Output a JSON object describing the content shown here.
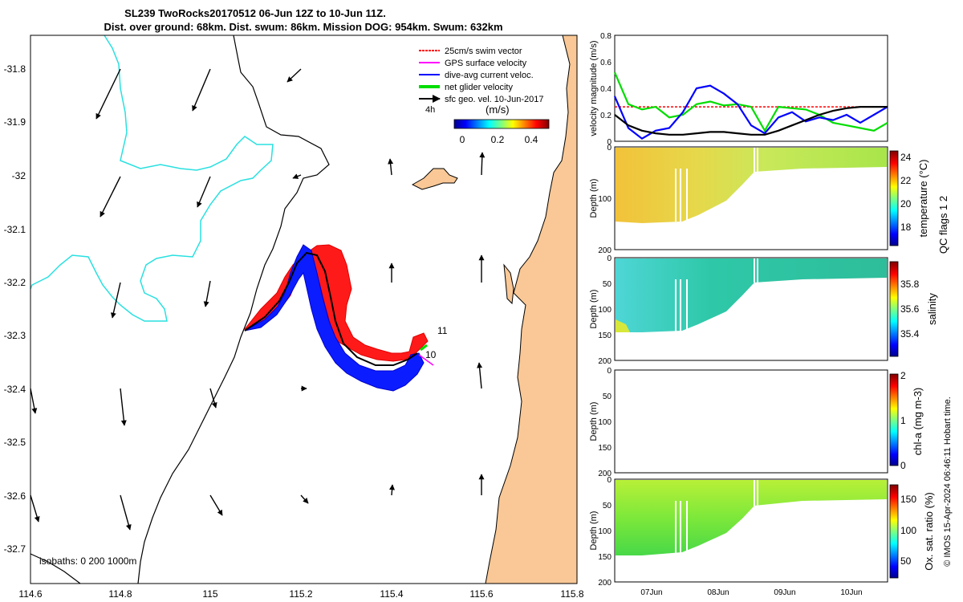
{
  "title": {
    "line1": "SL239 TwoRocks20170512 06-Jun 12Z to 10-Jun 11Z.",
    "line2": "Dist. over ground: 68km. Dist. swum: 86km. Mission DOG: 954km. Swum: 632km"
  },
  "map": {
    "xlim": [
      114.6,
      115.8
    ],
    "ylim": [
      -32.76,
      -31.74
    ],
    "xticks": [
      "114.6",
      "114.8",
      "115",
      "115.2",
      "115.4",
      "115.6",
      "115.8"
    ],
    "yticks": [
      "-31.8",
      "-31.9",
      "-32",
      "-32.1",
      "-32.2",
      "-32.3",
      "-32.4",
      "-32.5",
      "-32.6",
      "-32.7"
    ],
    "isobaths_label": "isobaths: 0   200  1000m",
    "legend": [
      {
        "label": "25cm/s swim vector",
        "color": "#ff0000"
      },
      {
        "label": "GPS surface velocity",
        "color": "#ff00ff"
      },
      {
        "label": "dive-avg current veloc.",
        "color": "#0000ff"
      },
      {
        "label": "net glider velocity",
        "color": "#00dd00"
      },
      {
        "label": "sfc geo. vel. 10-Jun-2017",
        "color": "#000000"
      }
    ],
    "speed_scale_label": "4h",
    "speed_colorbar_unit": "(m/s)",
    "speed_colorbar_ticks": [
      "0",
      "0.2",
      "0.4"
    ],
    "track_labels": [
      "11",
      "10"
    ]
  },
  "chart_data": [
    {
      "type": "line",
      "title": "",
      "ylabel": "velocity magnitude (m/s)",
      "ylim": [
        0,
        0.8
      ],
      "yticks": [
        "0",
        "0.2",
        "0.4",
        "0.6",
        "0.8"
      ],
      "x": [
        0,
        0.05,
        0.1,
        0.15,
        0.2,
        0.25,
        0.3,
        0.35,
        0.4,
        0.45,
        0.5,
        0.55,
        0.6,
        0.65,
        0.7,
        0.75,
        0.8,
        0.85,
        0.9,
        0.95,
        1.0
      ],
      "series": [
        {
          "name": "swim speed",
          "color": "#ff0000",
          "values": [
            0.26,
            0.26,
            0.26,
            0.26,
            0.26,
            0.26,
            0.26,
            0.26,
            0.26,
            0.26,
            0.26,
            0.26,
            0.26,
            0.26,
            0.26,
            0.26,
            0.26,
            0.26,
            0.26,
            0.26,
            0.26
          ]
        },
        {
          "name": "net glider velocity",
          "color": "#00dd00",
          "values": [
            0.52,
            0.28,
            0.24,
            0.26,
            0.18,
            0.2,
            0.28,
            0.3,
            0.27,
            0.28,
            0.26,
            0.08,
            0.26,
            0.25,
            0.24,
            0.2,
            0.14,
            0.12,
            0.1,
            0.08,
            0.14
          ]
        },
        {
          "name": "dive-avg current",
          "color": "#0000ff",
          "values": [
            0.34,
            0.1,
            0.02,
            0.08,
            0.1,
            0.22,
            0.4,
            0.42,
            0.36,
            0.28,
            0.12,
            0.06,
            0.18,
            0.22,
            0.15,
            0.18,
            0.16,
            0.2,
            0.14,
            0.2,
            0.26
          ]
        },
        {
          "name": "surface geostrophic",
          "color": "#000000",
          "values": [
            0.2,
            0.12,
            0.08,
            0.06,
            0.05,
            0.05,
            0.06,
            0.07,
            0.07,
            0.06,
            0.05,
            0.05,
            0.08,
            0.12,
            0.16,
            0.2,
            0.23,
            0.25,
            0.26,
            0.26,
            0.26
          ]
        }
      ]
    },
    {
      "type": "heatmap",
      "variable": "temperature",
      "cbar_label": "temperature (°C)",
      "ylabel": "Depth (m)",
      "ylim": [
        0,
        200
      ],
      "yticks": [
        "0",
        "100",
        "200"
      ],
      "cbar_range": [
        16.5,
        24.5
      ],
      "cbar_ticks": [
        "18",
        "20",
        "22",
        "24"
      ]
    },
    {
      "type": "heatmap",
      "variable": "salinity",
      "cbar_label": "salinity",
      "ylabel": "Depth (m)",
      "ylim": [
        0,
        200
      ],
      "yticks": [
        "0",
        "50",
        "100",
        "150",
        "200"
      ],
      "cbar_range": [
        35.25,
        35.95
      ],
      "cbar_ticks": [
        "35.4",
        "35.6",
        "35.8"
      ]
    },
    {
      "type": "heatmap",
      "variable": "chl-a",
      "cbar_label": "chl-a (mg m-3)",
      "ylabel": "Depth (m)",
      "ylim": [
        0,
        200
      ],
      "yticks": [
        "0",
        "50",
        "100",
        "150",
        "200"
      ],
      "cbar_range": [
        0,
        2
      ],
      "cbar_ticks": [
        "0",
        "1",
        "2"
      ]
    },
    {
      "type": "heatmap",
      "variable": "oxygen",
      "cbar_label": "Ox. sat. ratio (%)",
      "ylabel": "Depth (m)",
      "ylim": [
        0,
        200
      ],
      "yticks": [
        "0",
        "50",
        "100",
        "150",
        "200"
      ],
      "cbar_range": [
        20,
        175
      ],
      "cbar_ticks": [
        "50",
        "100",
        "150"
      ]
    }
  ],
  "time_axis": {
    "xticks": [
      "07Jun",
      "08Jun",
      "09Jun",
      "10Jun"
    ]
  },
  "qc_note": "QC flags 1  2",
  "footer": "© IMOS 15-Apr-2024 06:46:11 Hobart time."
}
